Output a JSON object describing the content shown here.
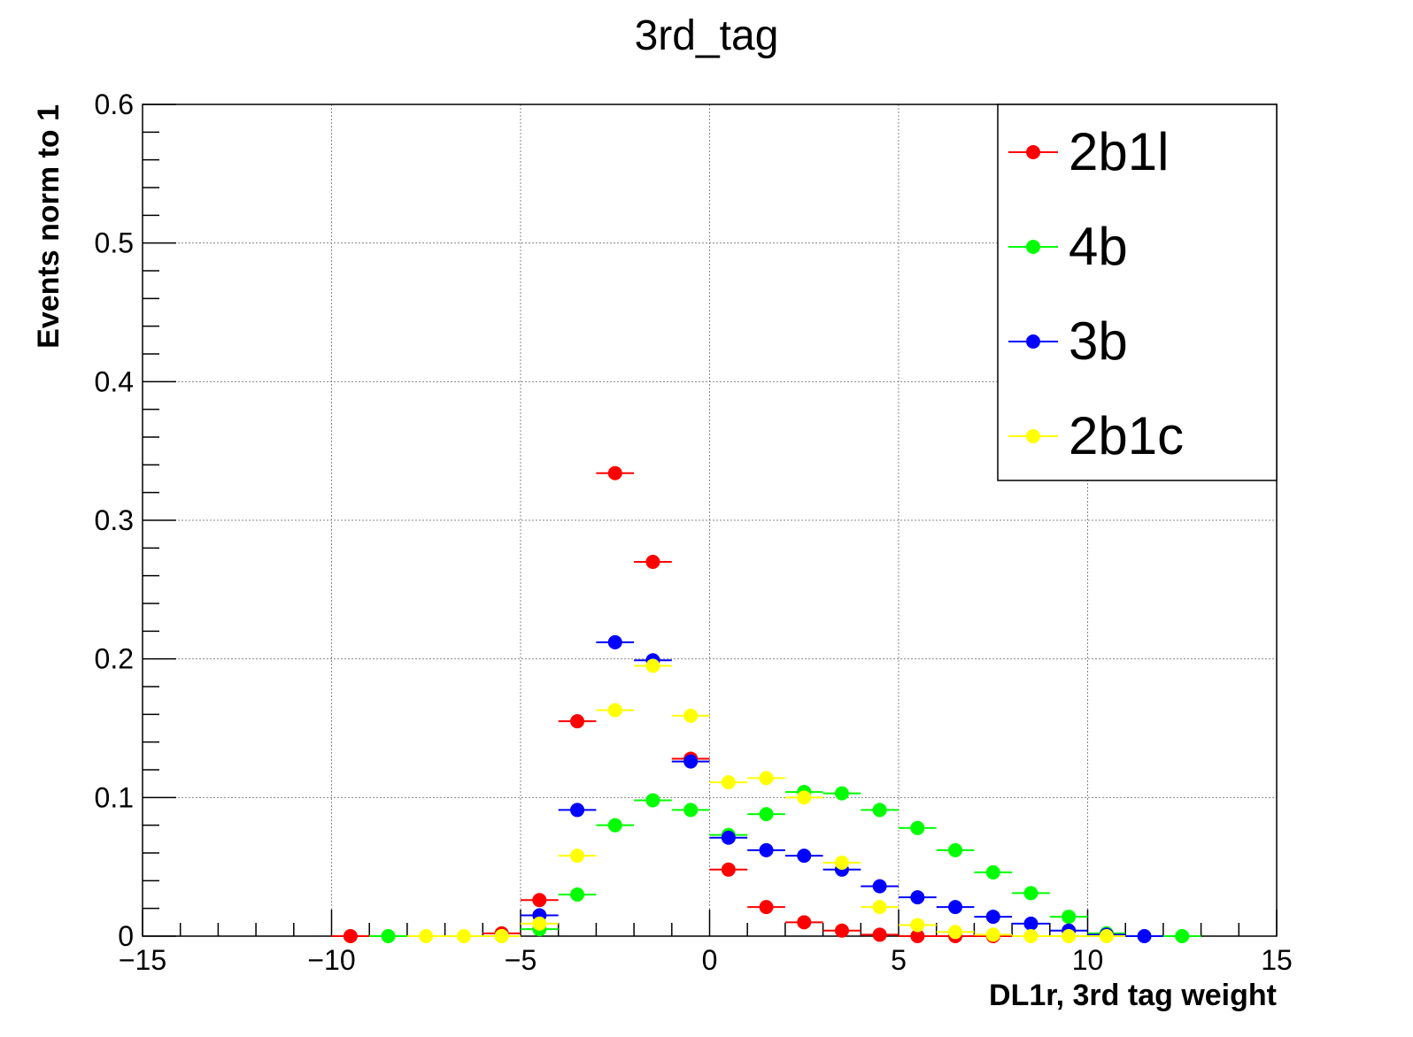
{
  "chart_data": {
    "type": "scatter",
    "title": "3rd_tag",
    "xlabel": "DL1r, 3rd tag weight",
    "ylabel": "Events norm to 1",
    "xlim": [
      -15,
      15
    ],
    "ylim": [
      0,
      0.6
    ],
    "xticks": [
      -15,
      -10,
      -5,
      0,
      5,
      10,
      15
    ],
    "xtick_labels": [
      "−15",
      "−10",
      "−5",
      "0",
      "5",
      "10",
      "15"
    ],
    "yticks": [
      0,
      0.1,
      0.2,
      0.3,
      0.4,
      0.5,
      0.6
    ],
    "ytick_labels": [
      "0",
      "0.1",
      "0.2",
      "0.3",
      "0.4",
      "0.5",
      "0.6"
    ],
    "grid": true,
    "legend_position": "top-right",
    "bin_width": 1,
    "series": [
      {
        "name": "2b1l",
        "color": "#ff0000",
        "points": [
          [
            -9.5,
            0.0
          ],
          [
            -5.5,
            0.002
          ],
          [
            -4.5,
            0.026
          ],
          [
            -3.5,
            0.155
          ],
          [
            -2.5,
            0.334
          ],
          [
            -1.5,
            0.27
          ],
          [
            -0.5,
            0.128
          ],
          [
            0.5,
            0.048
          ],
          [
            1.5,
            0.021
          ],
          [
            2.5,
            0.01
          ],
          [
            3.5,
            0.004
          ],
          [
            4.5,
            0.001
          ],
          [
            5.5,
            0.0
          ],
          [
            6.5,
            0.0
          ],
          [
            7.5,
            0.0
          ]
        ]
      },
      {
        "name": "4b",
        "color": "#00ff00",
        "points": [
          [
            -8.5,
            0.0
          ],
          [
            -5.5,
            0.0
          ],
          [
            -4.5,
            0.005
          ],
          [
            -3.5,
            0.03
          ],
          [
            -2.5,
            0.08
          ],
          [
            -1.5,
            0.098
          ],
          [
            -0.5,
            0.091
          ],
          [
            0.5,
            0.073
          ],
          [
            1.5,
            0.088
          ],
          [
            2.5,
            0.104
          ],
          [
            3.5,
            0.103
          ],
          [
            4.5,
            0.091
          ],
          [
            5.5,
            0.078
          ],
          [
            6.5,
            0.062
          ],
          [
            7.5,
            0.046
          ],
          [
            8.5,
            0.031
          ],
          [
            9.5,
            0.014
          ],
          [
            10.5,
            0.002
          ],
          [
            12.5,
            0.0
          ]
        ]
      },
      {
        "name": "3b",
        "color": "#0000ff",
        "points": [
          [
            -4.5,
            0.015
          ],
          [
            -3.5,
            0.091
          ],
          [
            -2.5,
            0.212
          ],
          [
            -1.5,
            0.199
          ],
          [
            -0.5,
            0.126
          ],
          [
            0.5,
            0.071
          ],
          [
            1.5,
            0.062
          ],
          [
            2.5,
            0.058
          ],
          [
            3.5,
            0.048
          ],
          [
            4.5,
            0.036
          ],
          [
            5.5,
            0.028
          ],
          [
            6.5,
            0.021
          ],
          [
            7.5,
            0.014
          ],
          [
            8.5,
            0.009
          ],
          [
            9.5,
            0.004
          ],
          [
            10.5,
            0.001
          ],
          [
            11.5,
            0.0
          ]
        ]
      },
      {
        "name": "2b1c",
        "color": "#ffff00",
        "points": [
          [
            -7.5,
            0.0
          ],
          [
            -6.5,
            0.0
          ],
          [
            -5.5,
            0.0
          ],
          [
            -4.5,
            0.009
          ],
          [
            -3.5,
            0.058
          ],
          [
            -2.5,
            0.163
          ],
          [
            -1.5,
            0.195
          ],
          [
            -0.5,
            0.159
          ],
          [
            0.5,
            0.111
          ],
          [
            1.5,
            0.114
          ],
          [
            2.5,
            0.1
          ],
          [
            3.5,
            0.053
          ],
          [
            4.5,
            0.021
          ],
          [
            5.5,
            0.008
          ],
          [
            6.5,
            0.003
          ],
          [
            7.5,
            0.001
          ],
          [
            8.5,
            0.0
          ],
          [
            9.5,
            0.0
          ],
          [
            10.5,
            0.0
          ]
        ]
      }
    ]
  }
}
